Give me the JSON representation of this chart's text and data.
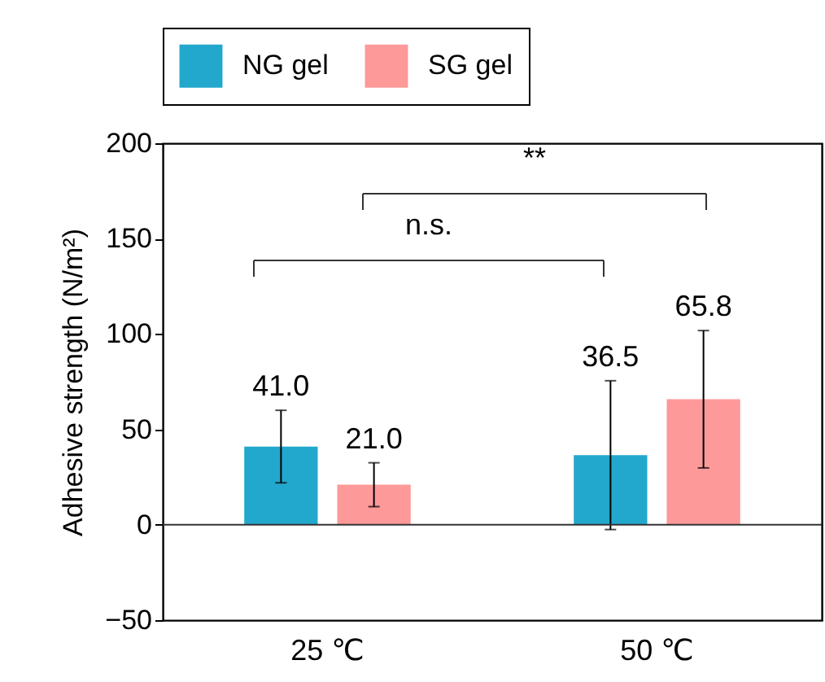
{
  "chart_data": {
    "type": "bar",
    "ylabel": "Adhesive strength (N/m²)",
    "categories": [
      "25 ℃",
      "50 ℃"
    ],
    "series": [
      {
        "name": "NG gel",
        "color": "#22a8cc",
        "values": [
          41.0,
          36.5
        ],
        "value_labels": [
          "41.0",
          "36.5"
        ],
        "errors": [
          19,
          39
        ]
      },
      {
        "name": "SG gel",
        "color": "#fd9999",
        "values": [
          21.0,
          65.8
        ],
        "value_labels": [
          "21.0",
          "65.8"
        ],
        "errors": [
          11.5,
          36
        ]
      }
    ],
    "ylim": [
      -50,
      200
    ],
    "yticks": [
      -50,
      0,
      50,
      100,
      150,
      200
    ],
    "grid": false,
    "legend": "top",
    "ref_lines": [
      {
        "axis": "y",
        "value": 0
      }
    ],
    "annotations": [
      "n.s.",
      "**"
    ]
  }
}
